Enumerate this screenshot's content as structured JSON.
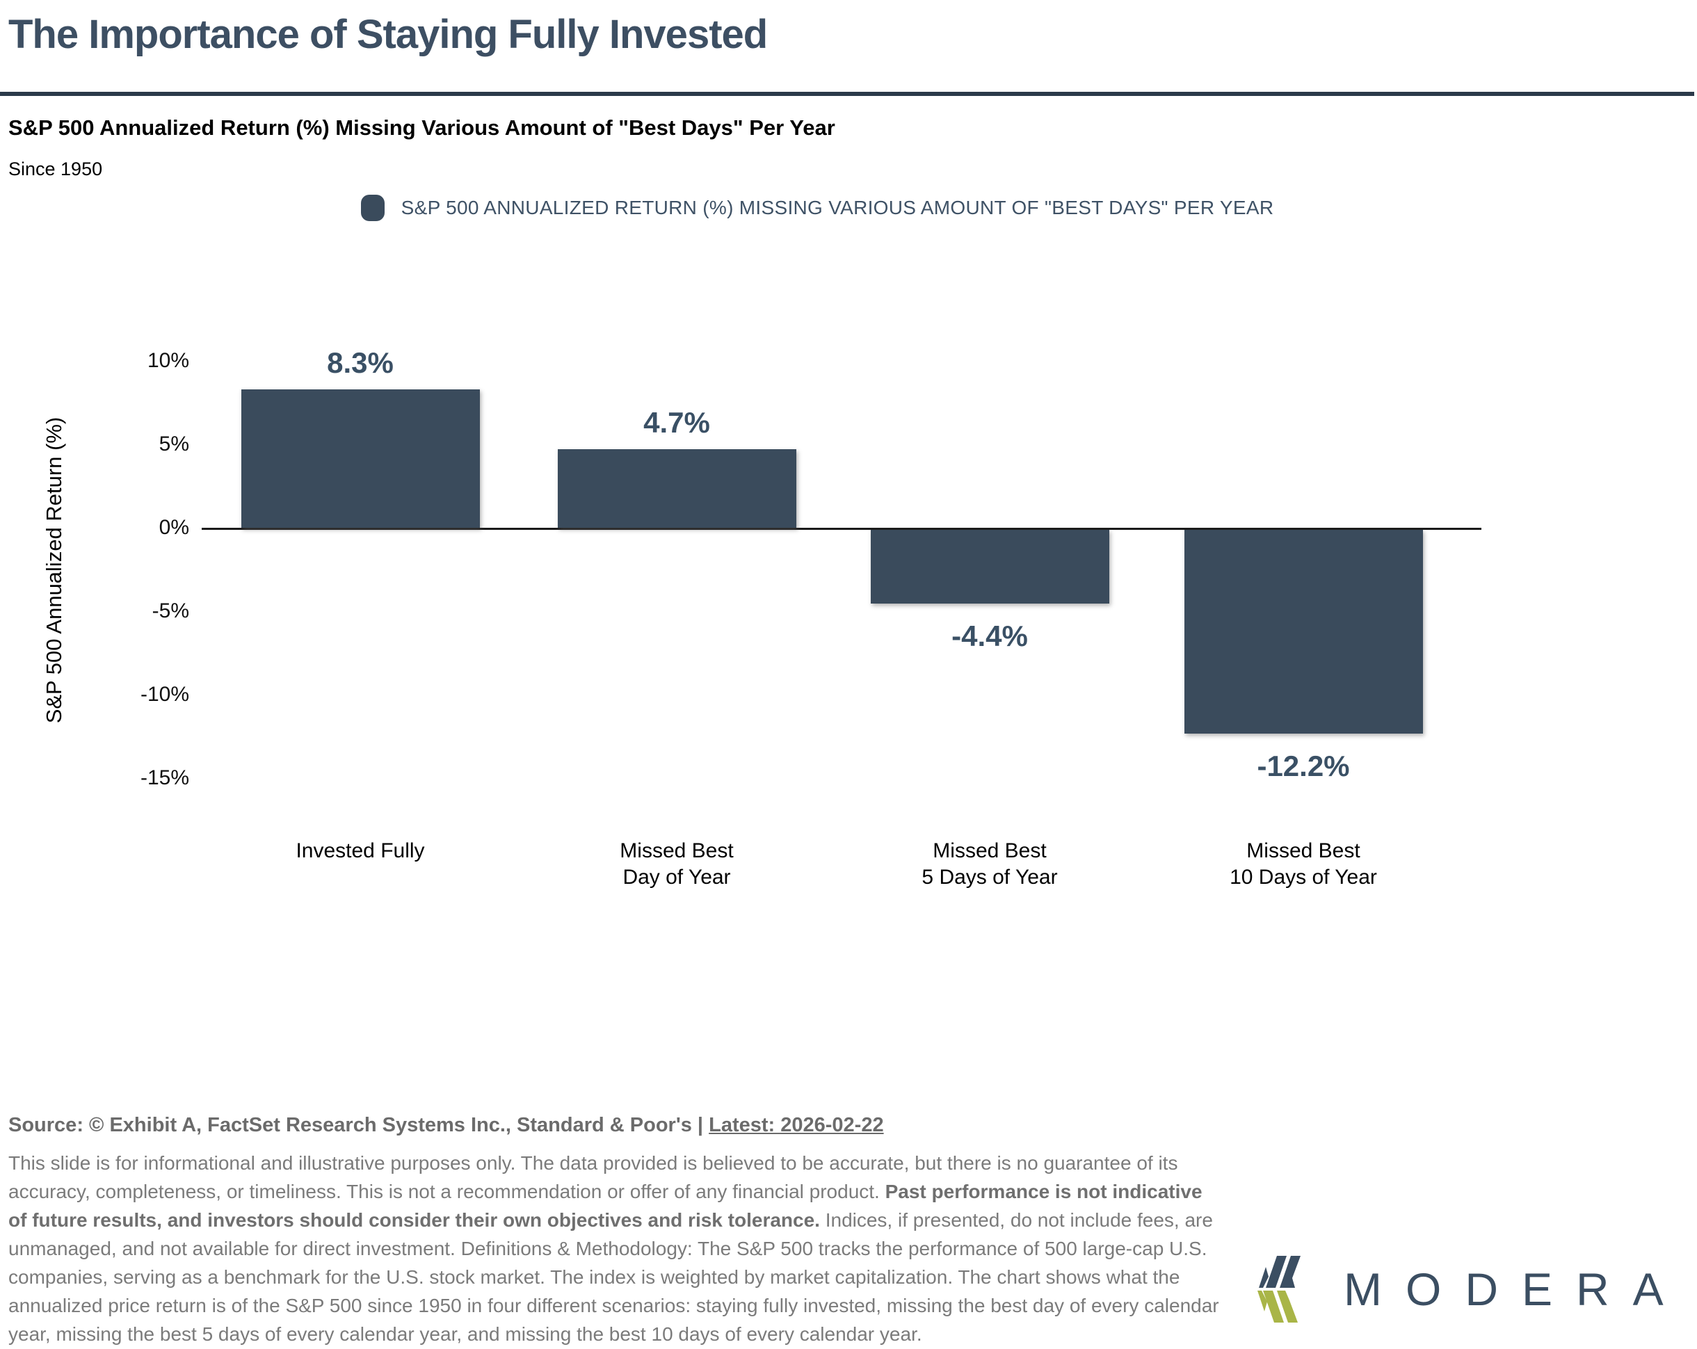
{
  "header": {
    "title": "The Importance of Staying Fully Invested",
    "subtitle": "S&P 500 Annualized Return (%) Missing Various Amount of \"Best Days\" Per Year",
    "period": "Since 1950"
  },
  "legend": {
    "label": "S&P 500 ANNUALIZED RETURN (%) MISSING VARIOUS AMOUNT OF \"BEST DAYS\" PER YEAR",
    "marker_color": "#3a4b5c"
  },
  "chart_data": {
    "type": "bar",
    "title": "S&P 500 Annualized Return (%) Missing Various Amount of \"Best Days\" Per Year",
    "subtitle": "Since 1950",
    "categories": [
      "Invested Fully",
      "Missed Best\nDay of Year",
      "Missed Best\n5 Days of Year",
      "Missed Best\n10 Days of Year"
    ],
    "values": [
      8.3,
      4.7,
      -4.4,
      -12.2
    ],
    "value_labels": [
      "8.3%",
      "4.7%",
      "-4.4%",
      "-12.2%"
    ],
    "xlabel": "",
    "ylabel": "S&P 500 Annualized Return (%)",
    "ylim": [
      -15,
      10
    ],
    "yticks": [
      {
        "value": 10,
        "label": "10%"
      },
      {
        "value": 5,
        "label": "5%"
      },
      {
        "value": 0,
        "label": "0%"
      },
      {
        "value": -5,
        "label": "-5%"
      },
      {
        "value": -10,
        "label": "-10%"
      },
      {
        "value": -15,
        "label": "-15%"
      }
    ],
    "grid": false,
    "legend_position": "top",
    "bar_color": "#3a4b5c",
    "value_label_color": "#3a5065"
  },
  "colors": {
    "title": "#3d4f63",
    "rule": "#2b3a4a",
    "legend_text": "#3f5266",
    "bar": "#3a4b5c",
    "value_label": "#3a5065",
    "footer_text": "#7b7b7b"
  },
  "footer": {
    "source_prefix": "Source: © Exhibit A, FactSet Research Systems Inc., Standard & Poor's | ",
    "source_latest": "Latest: 2026-02-22",
    "disclaimer_segments": [
      {
        "bold": false,
        "text": "This slide is for informational and illustrative purposes only. The data provided is believed to be accurate, but there is no guarantee of its accuracy, completeness, or timeliness. This is not a recommendation or offer of any financial product. "
      },
      {
        "bold": true,
        "text": "Past performance is not indicative of future results, and investors should consider their own objectives and risk tolerance."
      },
      {
        "bold": false,
        "text": " Indices, if presented, do not include fees, are unmanaged, and not available for direct investment. Definitions & Methodology: The S&P 500 tracks the performance of 500 large-cap U.S. companies, serving as a benchmark for the U.S. stock market. The index is weighted by market capitalization. The chart shows what the annualized price return is of the S&P 500 since 1950 in four different scenarios: staying fully invested, missing the best day of every calendar year, missing the best 5 days of every calendar year, and missing the best 10 days of every calendar year."
      }
    ]
  },
  "logo": {
    "wordmark": "MODERA",
    "navy": "#3b4e62",
    "green": "#a9b547"
  }
}
